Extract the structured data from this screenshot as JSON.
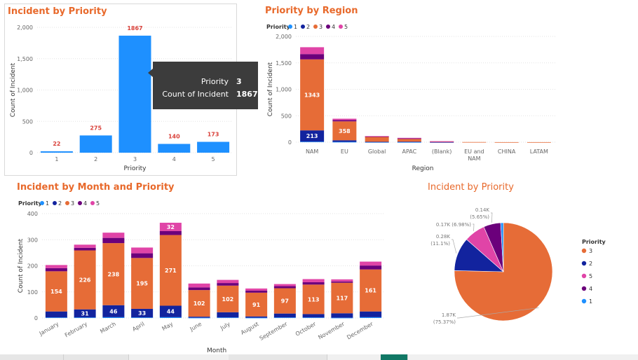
{
  "colors": {
    "p1": "#1e90ff",
    "p2": "#12239e",
    "p3": "#e66c37",
    "p4": "#6b007b",
    "p5": "#e044a7",
    "title": "#e8692b",
    "datalabel": "#d9413a",
    "tooltip_bg": "#3c3c3c"
  },
  "page": {
    "footer_axis_label": "Month"
  },
  "chart_data": [
    {
      "id": "incident_by_priority",
      "type": "bar",
      "title": "Incident by Priority",
      "xlabel": "Priority",
      "ylabel": "Count of Incident",
      "categories": [
        "1",
        "2",
        "3",
        "4",
        "5"
      ],
      "values": [
        22,
        275,
        1867,
        140,
        173
      ],
      "data_labels": [
        "22",
        "275",
        "1867",
        "140",
        "173"
      ],
      "yticks": [
        0,
        500,
        1000,
        1500,
        2000
      ],
      "ytick_labels": [
        "0",
        "500",
        "1,000",
        "1,500",
        "2,000"
      ],
      "ylim": [
        0,
        2000
      ],
      "grid": true,
      "tooltip": {
        "rows": [
          {
            "key": "Priority",
            "value": "3"
          },
          {
            "key": "Count of Incident",
            "value": "1867"
          }
        ]
      }
    },
    {
      "id": "priority_by_region",
      "type": "bar",
      "stacked": true,
      "title": "Priority by Region",
      "xlabel": "Region",
      "ylabel": "Count of Incident",
      "legend_title": "Priority",
      "legend": [
        "1",
        "2",
        "3",
        "4",
        "5"
      ],
      "categories": [
        "NAM",
        "EU",
        "Global",
        "APAC",
        "(Blank)",
        "EU and NAM",
        "CHINA",
        "LATAM"
      ],
      "category_labels": [
        [
          "NAM"
        ],
        [
          "EU"
        ],
        [
          "Global"
        ],
        [
          "APAC"
        ],
        [
          "(Blank)"
        ],
        [
          "EU and",
          "NAM"
        ],
        [
          "CHINA"
        ],
        [
          "LATAM"
        ]
      ],
      "series": [
        {
          "name": "1",
          "values": [
            10,
            6,
            2,
            2,
            0,
            0,
            0,
            0
          ],
          "labels": [
            "",
            "",
            "",
            "",
            "",
            "",
            "",
            ""
          ]
        },
        {
          "name": "2",
          "values": [
            213,
            30,
            6,
            8,
            2,
            0,
            0,
            0
          ],
          "labels": [
            "213",
            "",
            "",
            "",
            "",
            "",
            "",
            ""
          ]
        },
        {
          "name": "3",
          "values": [
            1343,
            358,
            95,
            52,
            12,
            3,
            1,
            1
          ],
          "labels": [
            "1343",
            "358",
            "",
            "",
            "",
            "",
            "",
            ""
          ]
        },
        {
          "name": "4",
          "values": [
            100,
            25,
            6,
            10,
            1,
            0,
            0,
            0
          ],
          "labels": [
            "",
            "",
            "",
            "",
            "",
            "",
            "",
            ""
          ]
        },
        {
          "name": "5",
          "values": [
            130,
            25,
            6,
            10,
            2,
            0,
            0,
            0
          ],
          "labels": [
            "",
            "",
            "",
            "",
            "",
            "",
            "",
            ""
          ]
        }
      ],
      "yticks": [
        0,
        500,
        1000,
        1500,
        2000
      ],
      "ytick_labels": [
        "0",
        "500",
        "1,000",
        "1,500",
        "2,000"
      ],
      "ylim": [
        0,
        2000
      ],
      "grid": true
    },
    {
      "id": "incident_by_month_and_priority",
      "type": "bar",
      "stacked": true,
      "title": "Incident by Month and Priority",
      "xlabel": "Month",
      "ylabel": "Count of Incident",
      "legend_title": "Priority",
      "legend": [
        "1",
        "2",
        "3",
        "4",
        "5"
      ],
      "categories": [
        "January",
        "February",
        "March",
        "April",
        "May",
        "June",
        "July",
        "August",
        "September",
        "October",
        "November",
        "December"
      ],
      "series": [
        {
          "name": "1",
          "values": [
            2,
            2,
            3,
            2,
            3,
            1,
            2,
            1,
            2,
            2,
            1,
            3
          ],
          "labels": [
            "",
            "",
            "",
            "",
            "",
            "",
            "",
            "",
            "",
            "",
            "",
            ""
          ]
        },
        {
          "name": "2",
          "values": [
            23,
            31,
            46,
            33,
            44,
            4,
            20,
            5,
            15,
            13,
            17,
            22
          ],
          "labels": [
            "",
            "31",
            "46",
            "33",
            "44",
            "",
            "",
            "",
            "",
            "",
            "",
            ""
          ]
        },
        {
          "name": "3",
          "values": [
            154,
            226,
            238,
            195,
            271,
            102,
            102,
            91,
            97,
            113,
            117,
            161
          ],
          "labels": [
            "154",
            "226",
            "238",
            "195",
            "271",
            "102",
            "102",
            "91",
            "97",
            "113",
            "117",
            "161"
          ]
        },
        {
          "name": "4",
          "values": [
            12,
            10,
            20,
            18,
            15,
            10,
            10,
            8,
            8,
            9,
            5,
            15
          ],
          "labels": [
            "",
            "",
            "",
            "",
            "",
            "",
            "",
            "",
            "",
            "",
            "",
            ""
          ]
        },
        {
          "name": "5",
          "values": [
            12,
            12,
            20,
            22,
            32,
            15,
            12,
            8,
            8,
            12,
            8,
            15
          ],
          "labels": [
            "",
            "",
            "",
            "",
            "32",
            "",
            "",
            "",
            "",
            "",
            "",
            ""
          ]
        }
      ],
      "yticks": [
        0,
        100,
        200,
        300,
        400
      ],
      "ytick_labels": [
        "0",
        "100",
        "200",
        "300",
        "400"
      ],
      "ylim": [
        0,
        400
      ],
      "grid": true
    },
    {
      "id": "incident_by_priority_pie",
      "type": "pie",
      "title": "Incident by Priority",
      "legend_title": "Priority",
      "slices": [
        {
          "label": "3",
          "value": 1867,
          "percent": 75.37,
          "label_lines": [
            "1.87K",
            "(75.37%)"
          ]
        },
        {
          "label": "2",
          "value": 275,
          "percent": 11.1,
          "label_lines": [
            "0.28K",
            "(11.1%)"
          ]
        },
        {
          "label": "5",
          "value": 173,
          "percent": 6.98,
          "label_lines": [
            "0.17K (6.98%)"
          ]
        },
        {
          "label": "4",
          "value": 140,
          "percent": 5.65,
          "label_lines": [
            "0.14K",
            "(5.65%)"
          ]
        },
        {
          "label": "1",
          "value": 22,
          "percent": 0.89,
          "label_lines": []
        }
      ]
    }
  ]
}
